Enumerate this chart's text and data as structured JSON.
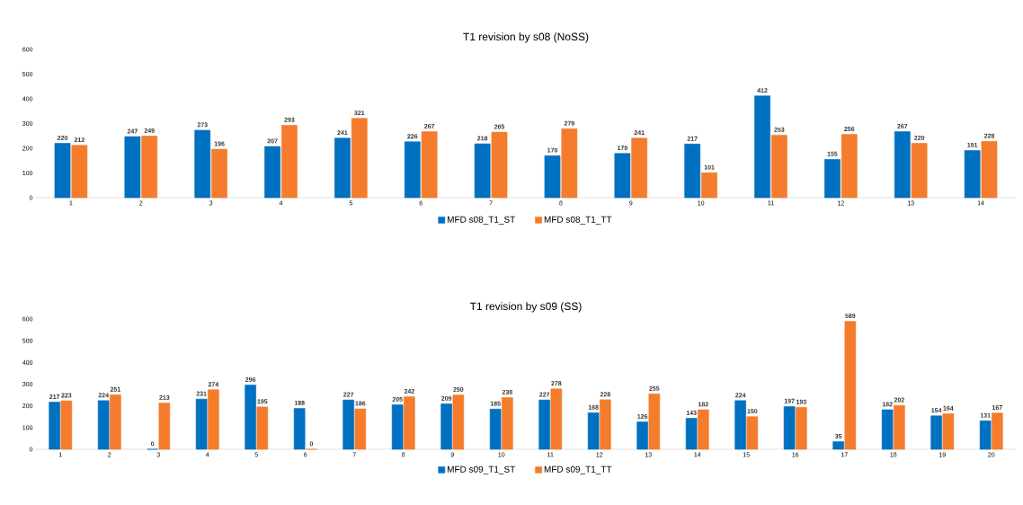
{
  "chart_data": [
    {
      "type": "bar",
      "title": "T1 revision by s08 (NoSS)",
      "categories": [
        "1",
        "2",
        "3",
        "4",
        "5",
        "6",
        "7",
        "8",
        "9",
        "10",
        "11",
        "12",
        "13",
        "14"
      ],
      "series": [
        {
          "name": "MFD s08_T1_ST",
          "color": "#0070c0",
          "values": [
            220,
            247,
            273,
            207,
            241,
            226,
            218,
            170,
            179,
            217,
            412,
            155,
            267,
            191
          ]
        },
        {
          "name": "MFD s08_T1_TT",
          "color": "#f47c2c",
          "values": [
            212,
            249,
            196,
            293,
            321,
            267,
            265,
            279,
            241,
            101,
            253,
            256,
            220,
            228
          ]
        }
      ],
      "ylim": [
        0,
        600
      ],
      "yticks": [
        0,
        100,
        200,
        300,
        400,
        500,
        600
      ],
      "data_labels": true,
      "legend": "bottom"
    },
    {
      "type": "bar",
      "title": "T1 revision by s09 (SS)",
      "categories": [
        "1",
        "2",
        "3",
        "4",
        "5",
        "6",
        "7",
        "8",
        "9",
        "10",
        "11",
        "12",
        "13",
        "14",
        "15",
        "16",
        "17",
        "18",
        "19",
        "20"
      ],
      "series": [
        {
          "name": "MFD s09_T1_ST",
          "color": "#0070c0",
          "values": [
            217,
            224,
            0,
            231,
            296,
            188,
            227,
            205,
            209,
            185,
            227,
            168,
            126,
            143,
            224,
            197,
            35,
            182,
            154,
            131
          ]
        },
        {
          "name": "MFD s09_T1_TT",
          "color": "#f47c2c",
          "values": [
            223,
            251,
            213,
            274,
            195,
            0,
            186,
            242,
            250,
            238,
            278,
            228,
            255,
            182,
            150,
            193,
            589,
            202,
            164,
            167
          ]
        }
      ],
      "ylim": [
        0,
        600
      ],
      "yticks": [
        0,
        100,
        200,
        300,
        400,
        500,
        600
      ],
      "data_labels": true,
      "legend": "bottom"
    }
  ]
}
